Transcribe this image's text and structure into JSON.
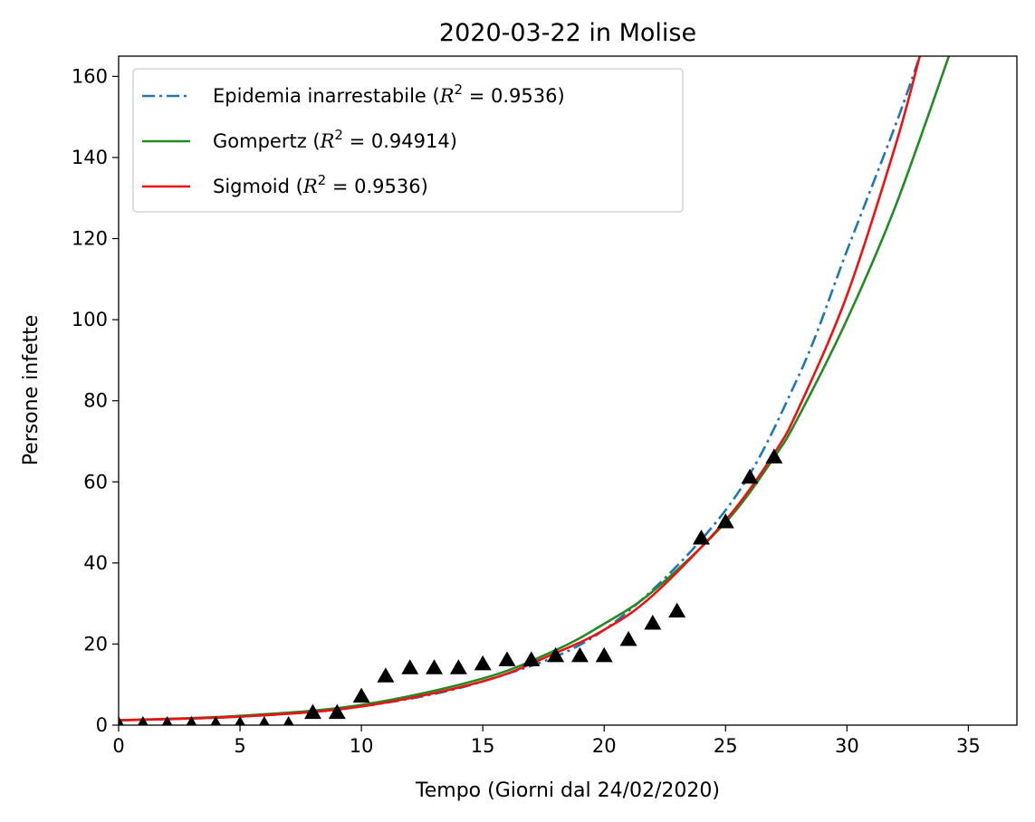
{
  "chart_data": {
    "type": "line",
    "title": "2020-03-22 in Molise",
    "xlabel": "Tempo (Giorni dal 24/02/2020)",
    "ylabel": "Persone infette",
    "xlim": [
      0,
      37
    ],
    "ylim": [
      0,
      165
    ],
    "xticks": [
      0,
      5,
      10,
      15,
      20,
      25,
      30,
      35
    ],
    "yticks": [
      0,
      20,
      40,
      60,
      80,
      100,
      120,
      140,
      160
    ],
    "grid": false,
    "legend_position": "top-left",
    "series": [
      {
        "name": "Epidemia inarrestabile (R² = 0.9536)",
        "style": "dash-dot",
        "color": "#1f77b4",
        "x": [
          0,
          5,
          10,
          15,
          20,
          25,
          28,
          30,
          32,
          33
        ],
        "y": [
          1.2,
          2.1,
          4.6,
          10.8,
          23.5,
          53.0,
          86.0,
          117.0,
          148.0,
          165.0
        ]
      },
      {
        "name": "Gompertz (R² = 0.94914)",
        "style": "solid",
        "color": "#228b22",
        "x": [
          0,
          5,
          10,
          15,
          18,
          20,
          22,
          25,
          27,
          28,
          30,
          32,
          34.2
        ],
        "y": [
          1.2,
          2.3,
          5.0,
          11.5,
          18.5,
          25.0,
          33.0,
          50.0,
          66.0,
          76.0,
          100.0,
          128.0,
          165.0
        ]
      },
      {
        "name": "Sigmoid (R² = 0.9536)",
        "style": "solid",
        "color": "#ee1111",
        "x": [
          0,
          5,
          10,
          15,
          18,
          20,
          22,
          25,
          27,
          28,
          30,
          32,
          33
        ],
        "y": [
          1.2,
          2.1,
          4.6,
          10.8,
          17.8,
          23.5,
          32.0,
          50.5,
          67.0,
          78.0,
          106.0,
          143.0,
          165.0
        ]
      },
      {
        "name": "",
        "style": "triangle-marker",
        "color": "#000000",
        "x": [
          0,
          1,
          2,
          3,
          4,
          5,
          6,
          7,
          8,
          9,
          10,
          11,
          12,
          13,
          14,
          15,
          16,
          17,
          18,
          19,
          20,
          21,
          22,
          23,
          24,
          25,
          26,
          27
        ],
        "y": [
          0,
          0,
          0,
          0,
          0,
          0,
          0,
          0,
          3,
          3,
          7,
          12,
          14,
          14,
          14,
          15,
          16,
          16,
          17,
          17,
          17,
          21,
          25,
          28,
          46,
          50,
          61,
          66
        ]
      }
    ],
    "legend": [
      {
        "label": "Epidemia inarrestabile (R² = 0.9536)",
        "prefix": "Epidemia inarrestabile (",
        "value": "= 0.9536)",
        "style": "dash-dot",
        "color": "#1f77b4"
      },
      {
        "label": "Gompertz (R² = 0.94914)",
        "prefix": "Gompertz (",
        "value": "= 0.94914)",
        "style": "solid",
        "color": "#228b22"
      },
      {
        "label": "Sigmoid (R² = 0.9536)",
        "prefix": "Sigmoid (",
        "value": "= 0.9536)",
        "style": "solid",
        "color": "#ee1111"
      }
    ]
  }
}
